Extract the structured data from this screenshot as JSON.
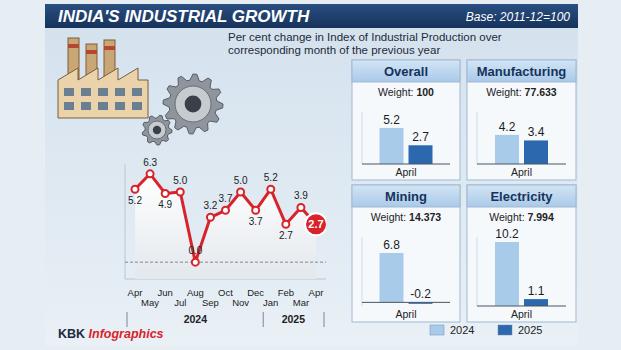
{
  "header": {
    "title": "INDIA'S INDUSTRIAL GROWTH",
    "base": "Base: 2011-12=100",
    "subtitle": "Per cent change in Index of Industrial Production over corresponding month of the previous year"
  },
  "source": "KBK Infographics",
  "chart_data": [
    {
      "type": "line",
      "categories": [
        "Apr",
        "May",
        "Jun",
        "Jul",
        "Aug",
        "Sep",
        "Oct",
        "Nov",
        "Dec",
        "Jan",
        "Feb",
        "Mar",
        "Apr"
      ],
      "values": [
        5.2,
        6.3,
        4.9,
        5.0,
        0.0,
        3.2,
        3.7,
        5.0,
        3.7,
        5.2,
        2.7,
        3.9,
        2.7
      ],
      "value_labels": [
        "5.2",
        "6.3",
        "4.9",
        "5.0",
        "0.0",
        "3.2",
        "3.7",
        "5.0",
        "3.7",
        "5.2",
        "2.7",
        "3.9",
        "2.7"
      ],
      "annotations": [
        "2024",
        "2025"
      ],
      "color": "#d8232a",
      "marker": "circle",
      "ylim": [
        -1.2,
        7
      ],
      "yticks": [
        0
      ],
      "grid": true,
      "tick_labels": "x",
      "data_labels": true
    },
    {
      "type": "bar",
      "title": "Overall",
      "subtitle": "Weight: 100",
      "categories": [
        "April"
      ],
      "series": [
        {
          "name": "2024",
          "color": "#a9cbea",
          "values": [
            5.2
          ]
        },
        {
          "name": "2025",
          "color": "#2c68ad",
          "values": [
            2.7
          ]
        }
      ],
      "ylim": [
        0,
        7.5
      ],
      "yticks": [
        0
      ],
      "grid": true,
      "tick_labels": "x",
      "data_labels": true,
      "legend": "bottom-right"
    },
    {
      "type": "bar",
      "title": "Manufacturing",
      "subtitle": "Weight: 77.633",
      "categories": [
        "April"
      ],
      "series": [
        {
          "color": "#a9cbea",
          "values": [
            4.2
          ]
        },
        {
          "color": "#2c68ad",
          "values": [
            3.4
          ]
        }
      ],
      "ylim": [
        0,
        7.5
      ],
      "yticks": [
        0
      ],
      "grid": true,
      "tick_labels": "x",
      "data_labels": true
    },
    {
      "type": "bar",
      "title": "Mining",
      "subtitle": "Weight: 14.373",
      "categories": [
        "April"
      ],
      "series": [
        {
          "color": "#a9cbea",
          "values": [
            6.8
          ]
        },
        {
          "color": "#2c68ad",
          "values": [
            -0.2
          ]
        }
      ],
      "ylim": [
        -0.5,
        9
      ],
      "yticks": [
        0
      ],
      "grid": true,
      "tick_labels": "x",
      "data_labels": true
    },
    {
      "type": "bar",
      "title": "Electricity",
      "subtitle": "Weight: 7.994",
      "categories": [
        "April"
      ],
      "series": [
        {
          "color": "#a9cbea",
          "values": [
            10.2
          ]
        },
        {
          "color": "#2c68ad",
          "values": [
            1.1
          ]
        }
      ],
      "ylim": [
        0,
        11
      ],
      "yticks": [
        0
      ],
      "grid": true,
      "tick_labels": "x",
      "data_labels": true
    }
  ]
}
